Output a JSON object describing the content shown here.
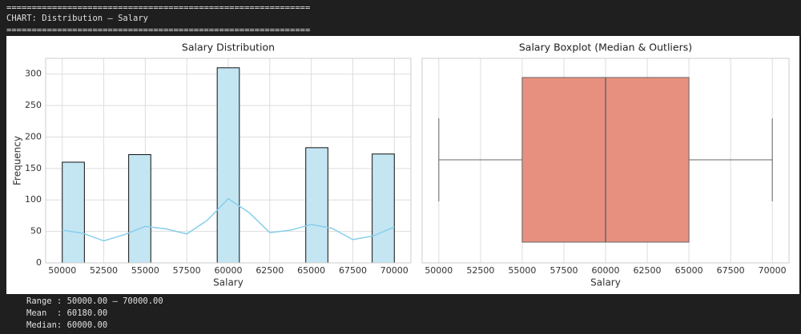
{
  "console_top": [
    "============================================================",
    "CHART: Distribution — Salary",
    "============================================================"
  ],
  "console_bottom": [
    "Range : 50000.00 – 70000.00",
    "Mean  : 60180.00",
    "Median: 60000.00"
  ],
  "chart_data": [
    {
      "type": "histogram",
      "title": "Salary Distribution",
      "xlabel": "Salary",
      "ylabel": "Frequency",
      "bins": [
        50000,
        51333.33,
        52666.67,
        54000,
        55333.33,
        56666.67,
        58000,
        59333.33,
        60666.67,
        62000,
        63333.33,
        64666.67,
        66000,
        67333.33,
        68666.67,
        70000
      ],
      "values": [
        160,
        0,
        0,
        172,
        0,
        0,
        0,
        310,
        0,
        0,
        0,
        183,
        0,
        0,
        173
      ],
      "color": "#c4e6f3",
      "edgecolor": "#111111",
      "kde": {
        "x": [
          50000,
          51250,
          52500,
          53750,
          55000,
          56250,
          57500,
          58750,
          60000,
          61250,
          62500,
          63750,
          65000,
          66250,
          67500,
          68750,
          70000
        ],
        "values": [
          52,
          47,
          35,
          45,
          58,
          54,
          46,
          68,
          102,
          80,
          48,
          52,
          61,
          55,
          37,
          43,
          57
        ],
        "color": "#87ceeb"
      },
      "xlim": [
        49000,
        71000
      ],
      "xticks": [
        50000,
        52500,
        55000,
        57500,
        60000,
        62500,
        65000,
        67500,
        70000
      ],
      "ylim": [
        0,
        325
      ],
      "yticks": [
        0,
        50,
        100,
        150,
        200,
        250,
        300
      ],
      "grid": true
    },
    {
      "type": "box",
      "title": "Salary Boxplot (Median & Outliers)",
      "xlabel": "Salary",
      "stats": {
        "whislo": 50000,
        "q1": 55000,
        "med": 60000,
        "q3": 65000,
        "whishi": 70000
      },
      "color": "#e8907f",
      "linecolor": "#666666",
      "xlim": [
        49000,
        71000
      ],
      "xticks": [
        50000,
        52500,
        55000,
        57500,
        60000,
        62500,
        65000,
        67500,
        70000
      ],
      "grid": true
    }
  ]
}
